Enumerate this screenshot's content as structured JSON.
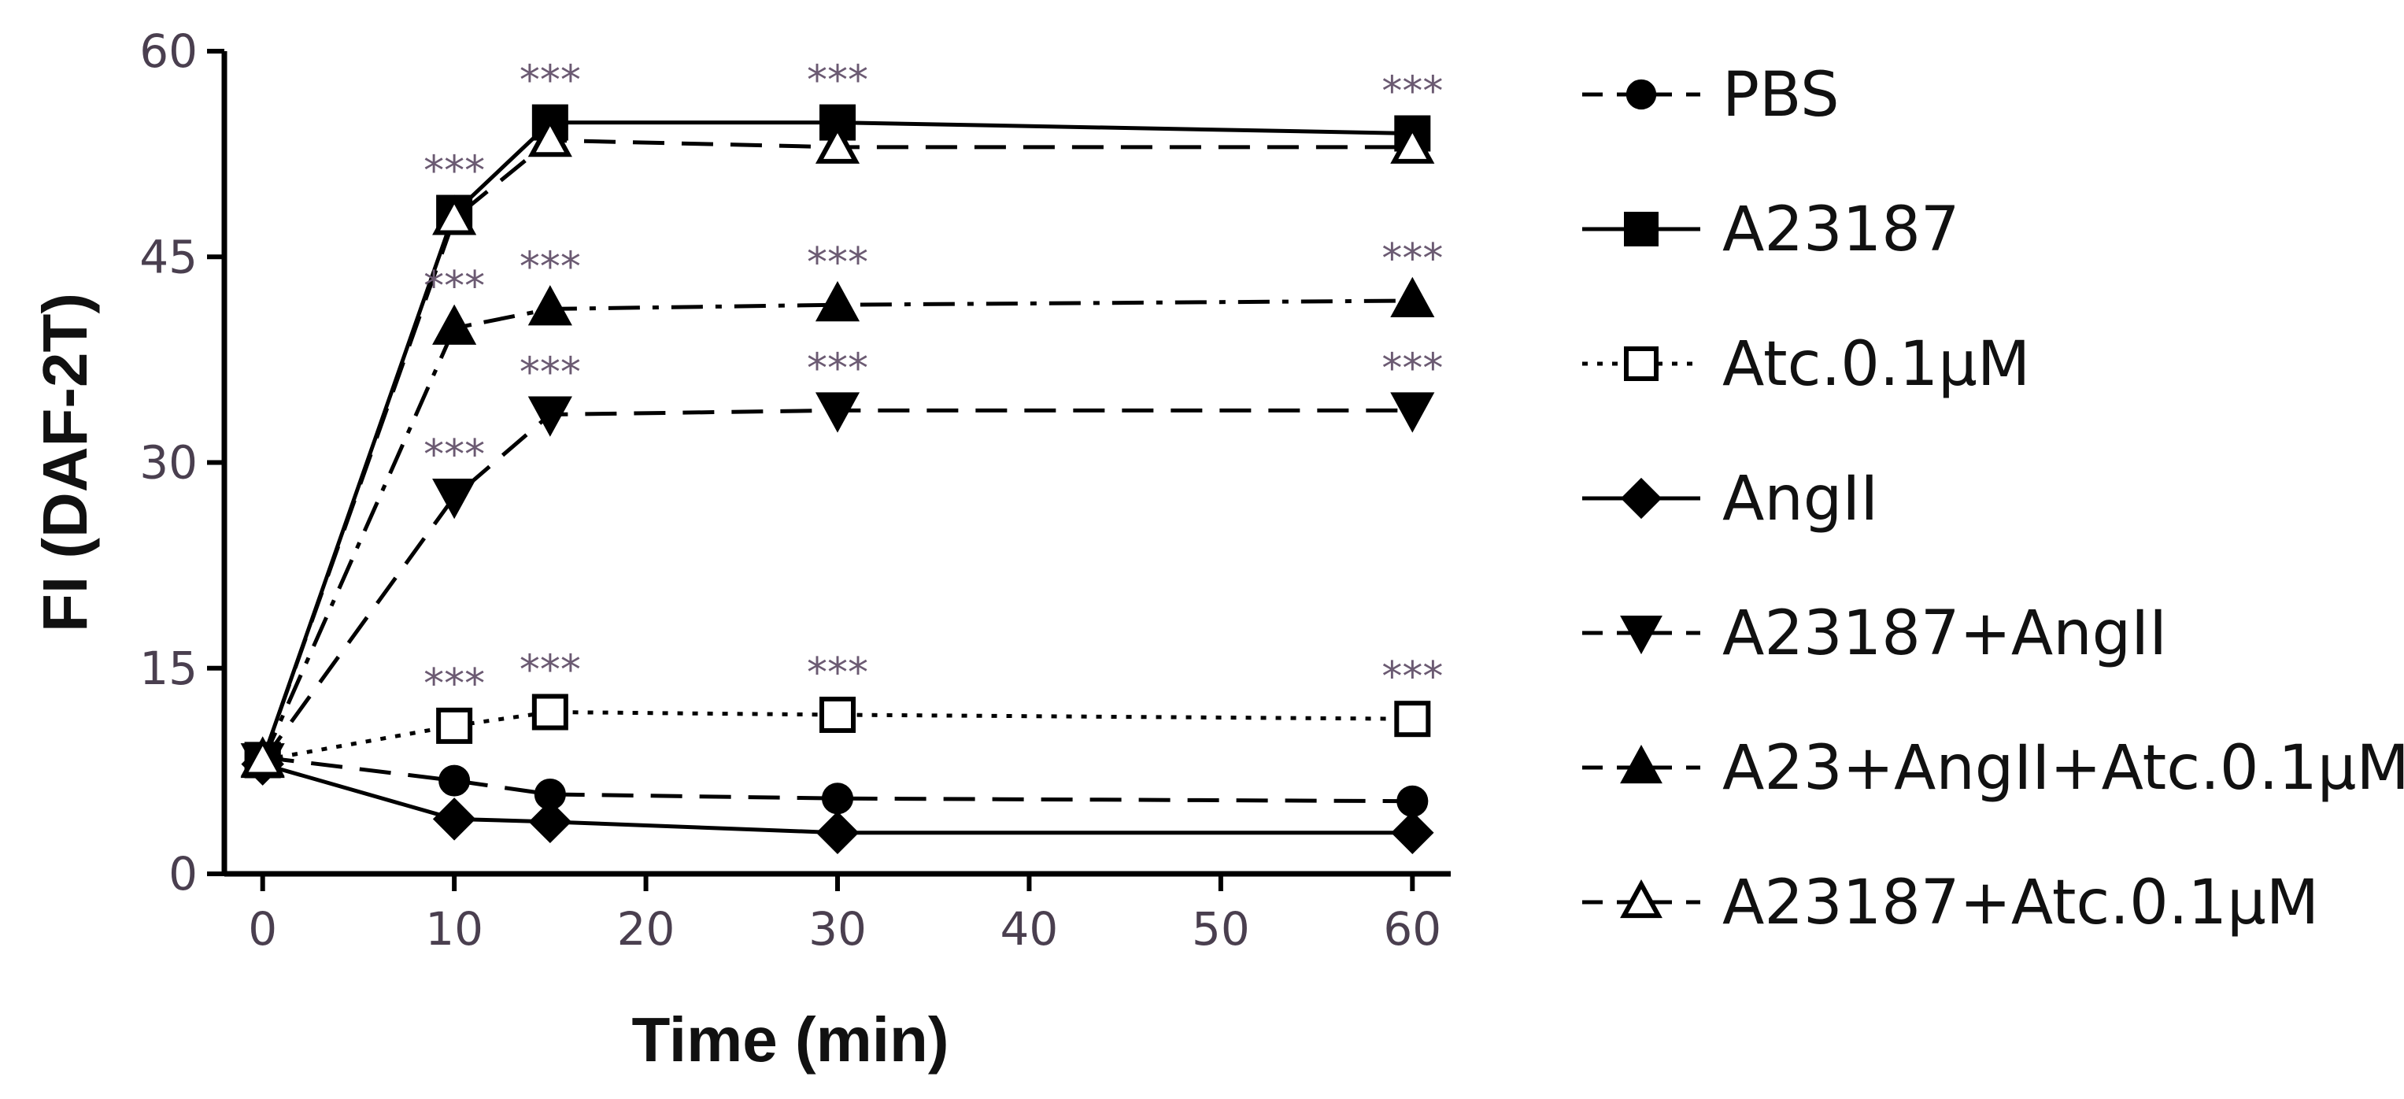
{
  "chart_data": {
    "type": "line",
    "xlabel": "Time (min)",
    "ylabel": "FI (DAF-2T)",
    "xlim": [
      -2,
      62
    ],
    "ylim": [
      0,
      60
    ],
    "xticks": [
      0,
      10,
      20,
      30,
      40,
      50,
      60
    ],
    "yticks": [
      0,
      15,
      30,
      45,
      60
    ],
    "x": [
      0,
      10,
      15,
      30,
      60
    ],
    "legend_position": "right",
    "grid": false,
    "significance_label": "***",
    "series": [
      {
        "name": "PBS",
        "marker": "circle-filled",
        "dash": "dashed",
        "values": [
          8.5,
          6.8,
          5.8,
          5.5,
          5.3
        ],
        "sig": []
      },
      {
        "name": "A23187",
        "marker": "square-filled",
        "dash": "solid",
        "values": [
          8.3,
          48.2,
          54.8,
          54.8,
          54.0
        ],
        "sig": [
          10,
          15,
          30,
          60
        ]
      },
      {
        "name": "Atc.0.1μM",
        "marker": "square-open",
        "dash": "dotted",
        "values": [
          8.3,
          10.8,
          11.8,
          11.6,
          11.3
        ],
        "sig": [
          10,
          15,
          30,
          60
        ]
      },
      {
        "name": "AngII",
        "marker": "diamond-filled",
        "dash": "solid",
        "values": [
          8.0,
          4.0,
          3.8,
          3.0,
          3.0
        ],
        "sig": []
      },
      {
        "name": "A23187+AngII",
        "marker": "triangle-down-filled",
        "dash": "dashed",
        "values": [
          8.2,
          27.5,
          33.5,
          33.8,
          33.8
        ],
        "sig": [
          10,
          15,
          30,
          60
        ]
      },
      {
        "name": "A23+AngII+Atc.0.1μM",
        "marker": "triangle-up-filled",
        "dash": "dashdot",
        "values": [
          8.2,
          39.8,
          41.2,
          41.5,
          41.8
        ],
        "sig": [
          10,
          15,
          30,
          60
        ]
      },
      {
        "name": "A23187+Atc.0.1μM",
        "marker": "triangle-up-open",
        "dash": "dashed",
        "values": [
          8.3,
          47.8,
          53.5,
          53.0,
          53.0
        ],
        "sig": []
      }
    ]
  }
}
